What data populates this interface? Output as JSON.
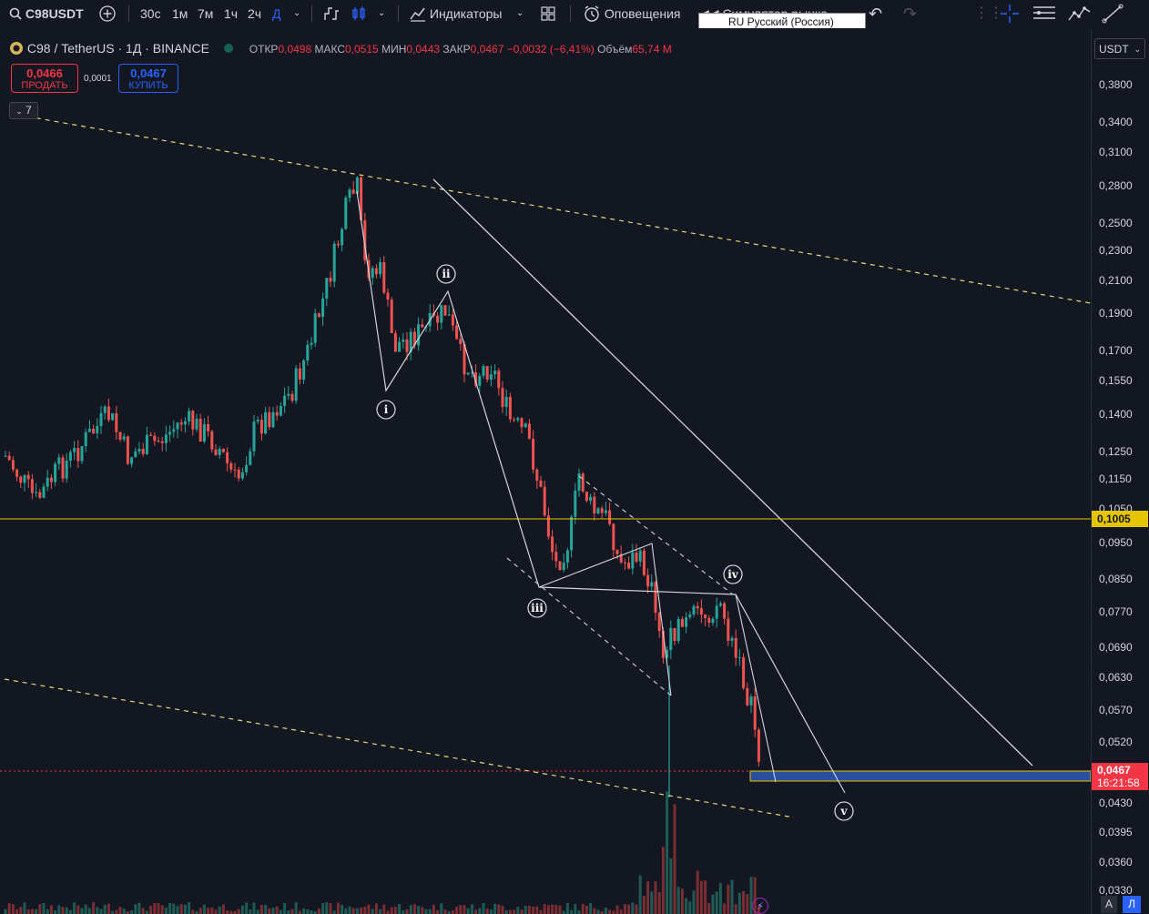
{
  "toolbar": {
    "symbol": "C98USDT",
    "timeframes": [
      "30с",
      "1м",
      "7м",
      "1ч",
      "2ч",
      "Д"
    ],
    "active_timeframe": "Д",
    "indicators_label": "Индикаторы",
    "alerts_label": "Оповещения",
    "replay_label": "Симулятор рынка",
    "language_popup": "RU Русский (Россия)"
  },
  "legend": {
    "symbol_desc": "С98 / TetherUS · 1Д · BINANCE",
    "open_label": "ОТКР",
    "open": "0,0498",
    "high_label": "МАКС",
    "high": "0,0515",
    "low_label": "МИН",
    "low": "0,0443",
    "close_label": "ЗАКР",
    "close": "0,0467",
    "change": "−0,0032 (−6,41%)",
    "volume_label": "Объём",
    "volume": "65,74 M"
  },
  "trade": {
    "sell_price": "0,0466",
    "sell_label": "ПРОДАТЬ",
    "spread": "0,0001",
    "buy_price": "0,0467",
    "buy_label": "КУПИТЬ"
  },
  "indicator_count": "7",
  "price_axis": {
    "currency": "USDT",
    "ticks": [
      "0,3800",
      "0,3400",
      "0,3100",
      "0,2800",
      "0,2500",
      "0,2300",
      "0,2100",
      "0,1900",
      "0,1700",
      "0,1550",
      "0,1400",
      "0,1250",
      "0,1150",
      "0,1050",
      "0,0950",
      "0,0850",
      "0,0770",
      "0,0690",
      "0,0630",
      "0,0570",
      "0,0520",
      "0,0430",
      "0,0395",
      "0,0360",
      "0,0330"
    ],
    "horizontal_line_price": "0,1005",
    "last_price": "0,0467",
    "countdown": "16:21:58"
  },
  "wave_labels": [
    "i",
    "ii",
    "iii",
    "iv",
    "v"
  ],
  "scale_buttons": {
    "auto": "A",
    "log": "Л"
  },
  "colors": {
    "up": "#26a69a",
    "down": "#ef5350",
    "background": "#131722",
    "accent": "#2962ff",
    "horizontal_line": "#e5c400",
    "zone": "#2a4f9e"
  }
}
